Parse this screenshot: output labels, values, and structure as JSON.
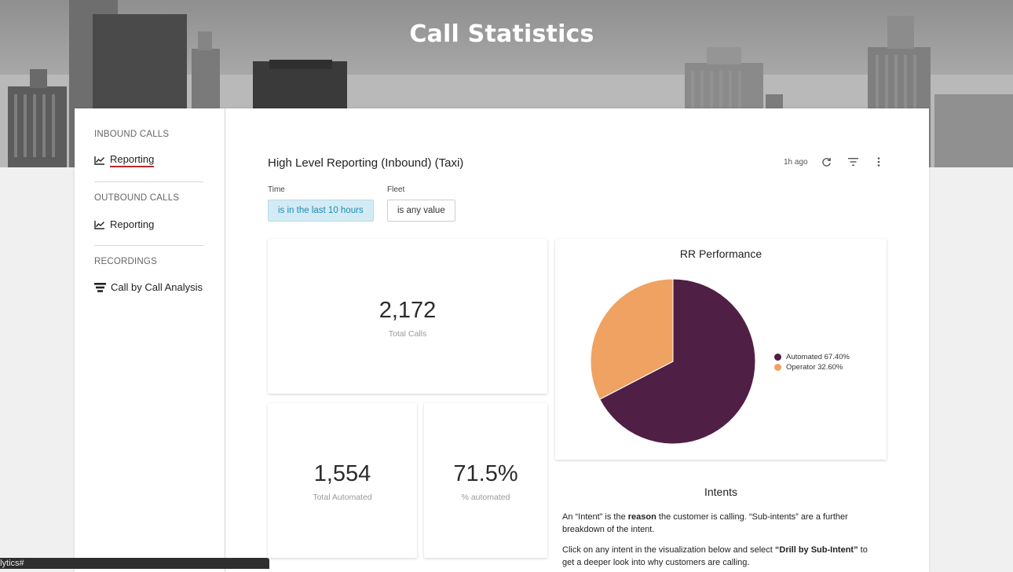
{
  "header": {
    "title": "Call Statistics"
  },
  "sidebar": {
    "sections": [
      {
        "heading": "INBOUND CALLS",
        "items": [
          {
            "label": "Reporting",
            "icon": "line-chart-icon",
            "active": true
          }
        ]
      },
      {
        "heading": "OUTBOUND CALLS",
        "items": [
          {
            "label": "Reporting",
            "icon": "line-chart-icon",
            "active": false
          }
        ]
      },
      {
        "heading": "RECORDINGS",
        "items": [
          {
            "label": "Call by Call Analysis",
            "icon": "funnel-stack-icon",
            "active": false
          }
        ]
      }
    ]
  },
  "dashboard": {
    "title": "High Level Reporting (Inbound) (Taxi)",
    "updated": "1h ago",
    "icons": [
      "refresh-icon",
      "filter-icon",
      "more-vert-icon"
    ],
    "filters": [
      {
        "label": "Time",
        "value": "is in the last 10 hours"
      },
      {
        "label": "Fleet",
        "value": "is any value"
      }
    ]
  },
  "kpis": {
    "total_calls": {
      "value": "2,172",
      "label": "Total Calls"
    },
    "total_automated": {
      "value": "1,554",
      "label": "Total Automated"
    },
    "pct_automated": {
      "value": "71.5%",
      "label": "% automated"
    }
  },
  "chart_data": {
    "type": "pie",
    "title": "RR Performance",
    "slices": [
      {
        "name": "Automated",
        "value": 67.4,
        "label": "Automated 67.40%",
        "color": "#4f1f45"
      },
      {
        "name": "Operator",
        "value": 32.6,
        "label": "Operator 32.60%",
        "color": "#f0a263"
      }
    ],
    "legend_position": "right"
  },
  "intents": {
    "title": "Intents",
    "p1_a": "An “Intent” is the ",
    "p1_b": "reason",
    "p1_c": " the customer is calling. “Sub-intents” are a further breakdown of the intent.",
    "p2_a": "Click on any intent in the visualization below and select ",
    "p2_b": "“Drill by Sub-Intent”",
    "p2_c": " to get a deeper look into why customers are calling."
  },
  "statusbar": {
    "text": "alytics#"
  }
}
